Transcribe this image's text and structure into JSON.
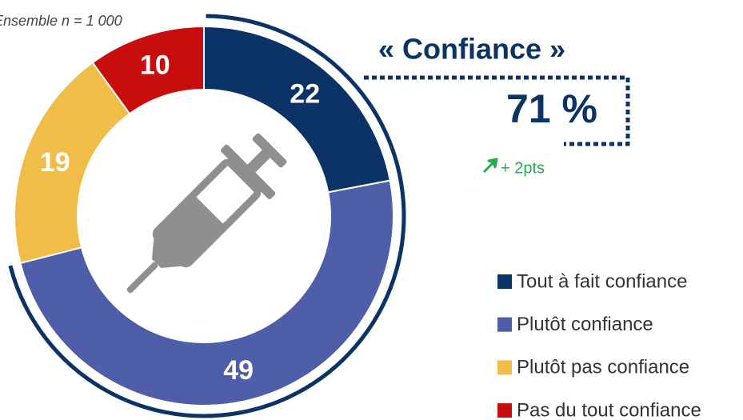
{
  "chart_data": {
    "type": "donut",
    "subtitle": "Ensemble n = 1 000",
    "categories": [
      "Tout à fait confiance",
      "Plutôt confiance",
      "Plutôt pas confiance",
      "Pas du tout confiance"
    ],
    "values": [
      22,
      49,
      19,
      10
    ],
    "colors": [
      "#0b3366",
      "#4f5ea8",
      "#f0bd48",
      "#c80d0d"
    ],
    "highlight_label": "« Confiance »",
    "highlight_value": "71 %",
    "highlight_change": "+ 2pts"
  }
}
